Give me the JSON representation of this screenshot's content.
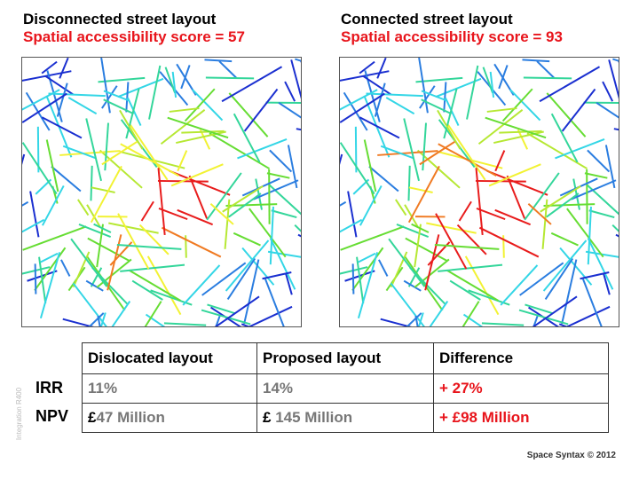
{
  "left_panel": {
    "title": "Disconnected street layout",
    "score_label": "Spatial accessibility score = 57",
    "seed": 7,
    "hot": 0.2
  },
  "right_panel": {
    "title": "Connected street layout",
    "score_label": "Spatial accessibility score = 93",
    "seed": 7,
    "hot": 0.7
  },
  "legend_label": "Integration R400",
  "table": {
    "headers": [
      "Dislocated layout",
      "Proposed layout",
      "Difference"
    ],
    "rows": [
      {
        "label": "IRR",
        "dislocated": "11%",
        "proposed": "14%",
        "difference": "+ 27%"
      },
      {
        "label": "NPV",
        "dislocated_symbol": "£",
        "dislocated": "47 Million",
        "proposed_symbol": "£ ",
        "proposed": "145 Million",
        "difference": "+ £98 Million"
      }
    ]
  },
  "footer": "Space Syntax © 2012",
  "colors": {
    "accent_red": "#e8141b",
    "value_gray": "#777777"
  }
}
